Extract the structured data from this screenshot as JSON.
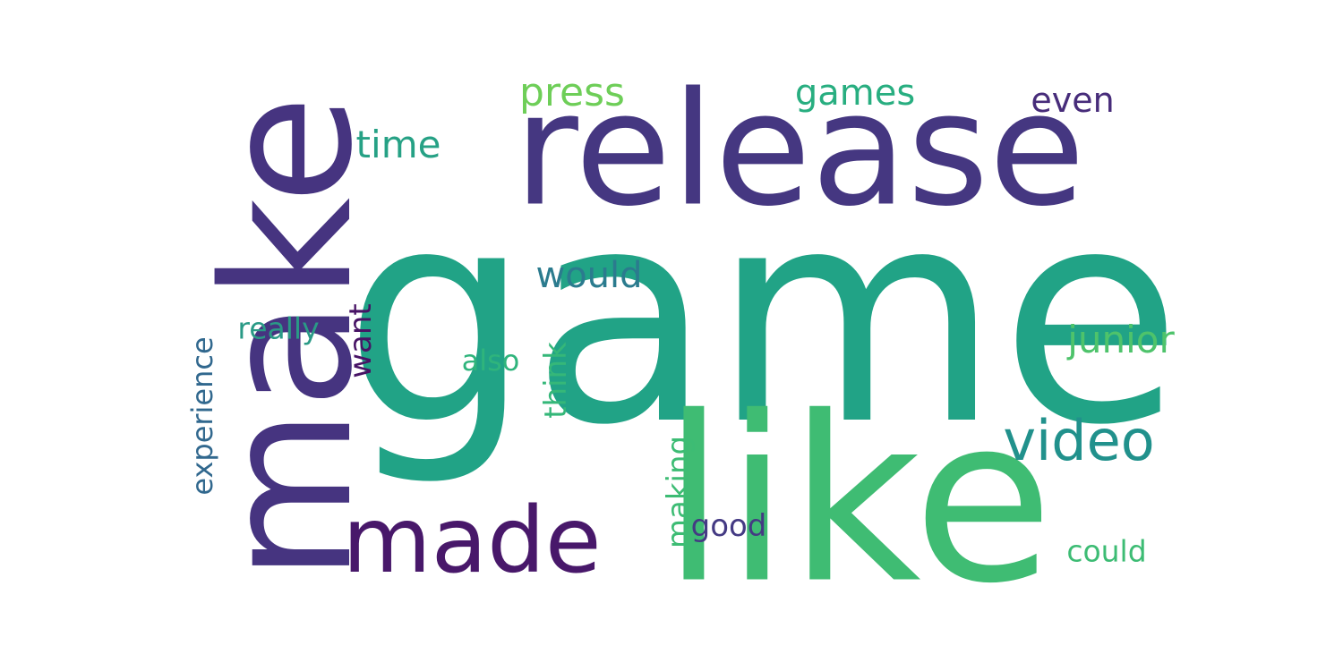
{
  "words": [
    {
      "key": "game",
      "text": "game",
      "color": "#21a386",
      "orientation": "horizontal"
    },
    {
      "key": "like",
      "text": "like",
      "color": "#3fbc73",
      "orientation": "horizontal"
    },
    {
      "key": "release",
      "text": "release",
      "color": "#453781",
      "orientation": "horizontal"
    },
    {
      "key": "make",
      "text": "make",
      "color": "#463480",
      "orientation": "vertical"
    },
    {
      "key": "made",
      "text": "made",
      "color": "#48186a",
      "orientation": "horizontal"
    },
    {
      "key": "video",
      "text": "video",
      "color": "#21918c",
      "orientation": "horizontal"
    },
    {
      "key": "press",
      "text": "press",
      "color": "#6ece58",
      "orientation": "horizontal"
    },
    {
      "key": "games",
      "text": "games",
      "color": "#28ae80",
      "orientation": "horizontal"
    },
    {
      "key": "even",
      "text": "even",
      "color": "#472c7a",
      "orientation": "horizontal"
    },
    {
      "key": "time",
      "text": "time",
      "color": "#26a185",
      "orientation": "horizontal"
    },
    {
      "key": "would",
      "text": "would",
      "color": "#2b7b8e",
      "orientation": "horizontal"
    },
    {
      "key": "junior",
      "text": "junior",
      "color": "#4ec36b",
      "orientation": "horizontal"
    },
    {
      "key": "really",
      "text": "really",
      "color": "#2a9a86",
      "orientation": "horizontal"
    },
    {
      "key": "want",
      "text": "want",
      "color": "#471365",
      "orientation": "vertical"
    },
    {
      "key": "also",
      "text": "also",
      "color": "#2fb47c",
      "orientation": "horizontal"
    },
    {
      "key": "think",
      "text": "think",
      "color": "#35b779",
      "orientation": "vertical"
    },
    {
      "key": "experience",
      "text": "experience",
      "color": "#31688e",
      "orientation": "vertical"
    },
    {
      "key": "making",
      "text": "making",
      "color": "#3dbc74",
      "orientation": "vertical"
    },
    {
      "key": "good",
      "text": "good",
      "color": "#443a83",
      "orientation": "horizontal"
    },
    {
      "key": "could",
      "text": "could",
      "color": "#3dbc74",
      "orientation": "horizontal"
    }
  ]
}
